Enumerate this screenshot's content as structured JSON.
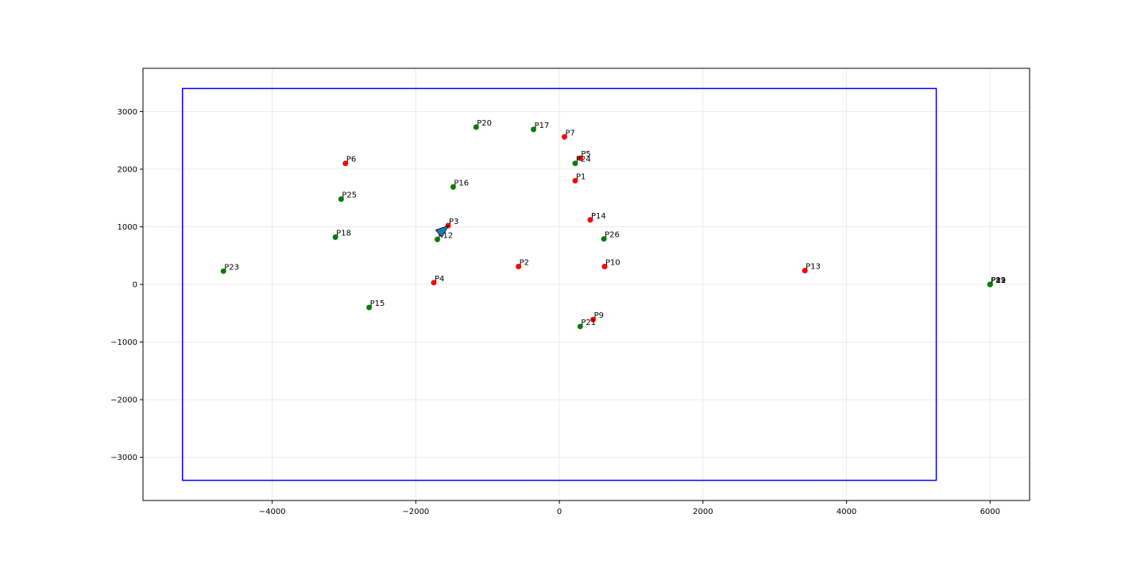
{
  "chart_data": {
    "type": "scatter",
    "title": "",
    "xlabel": "",
    "ylabel": "",
    "xlim": [
      -5800,
      6550
    ],
    "ylim": [
      -3750,
      3750
    ],
    "xticks": [
      -4000,
      -2000,
      0,
      2000,
      4000,
      6000
    ],
    "yticks": [
      -3000,
      -2000,
      -1000,
      0,
      1000,
      2000,
      3000
    ],
    "grid": true,
    "colors": {
      "red_points": "#ff0000",
      "green_points": "#008000",
      "boundary": "#0000ff",
      "arrow": "#1f77b4",
      "grid": "#ebebeb"
    },
    "boundary": {
      "x": [
        -5250,
        5250
      ],
      "y": [
        -3400,
        3400
      ]
    },
    "arrow": {
      "x": -1680,
      "y": 880,
      "heading_deg": 40
    },
    "points": [
      {
        "label": "P1",
        "x": 220,
        "y": 1800,
        "color": "red"
      },
      {
        "label": "P2",
        "x": -570,
        "y": 310,
        "color": "red"
      },
      {
        "label": "P3",
        "x": -1550,
        "y": 1020,
        "color": "red"
      },
      {
        "label": "P4",
        "x": -1750,
        "y": 30,
        "color": "red"
      },
      {
        "label": "P5",
        "x": 290,
        "y": 2190,
        "color": "red"
      },
      {
        "label": "P6",
        "x": -2980,
        "y": 2100,
        "color": "red"
      },
      {
        "label": "P7",
        "x": 70,
        "y": 2560,
        "color": "red"
      },
      {
        "label": "P9",
        "x": 470,
        "y": -610,
        "color": "red"
      },
      {
        "label": "P10",
        "x": 630,
        "y": 310,
        "color": "red"
      },
      {
        "label": "P13",
        "x": 3420,
        "y": 240,
        "color": "red"
      },
      {
        "label": "P14",
        "x": 430,
        "y": 1120,
        "color": "red"
      },
      {
        "label": "P8",
        "x": 6000,
        "y": 0,
        "color": "red"
      },
      {
        "label": "P11",
        "x": 6000,
        "y": 0,
        "color": "red"
      },
      {
        "label": "P12",
        "x": -1700,
        "y": 780,
        "color": "green"
      },
      {
        "label": "P15",
        "x": -2650,
        "y": -400,
        "color": "green"
      },
      {
        "label": "P16",
        "x": -1480,
        "y": 1690,
        "color": "green"
      },
      {
        "label": "P17",
        "x": -360,
        "y": 2690,
        "color": "green"
      },
      {
        "label": "P18",
        "x": -3120,
        "y": 820,
        "color": "green"
      },
      {
        "label": "P20",
        "x": -1160,
        "y": 2730,
        "color": "green"
      },
      {
        "label": "P21",
        "x": 290,
        "y": -730,
        "color": "green"
      },
      {
        "label": "P23",
        "x": -4680,
        "y": 230,
        "color": "green"
      },
      {
        "label": "P24",
        "x": 220,
        "y": 2100,
        "color": "green"
      },
      {
        "label": "P25",
        "x": -3040,
        "y": 1480,
        "color": "green"
      },
      {
        "label": "P26",
        "x": 620,
        "y": 790,
        "color": "green"
      },
      {
        "label": "P19",
        "x": 6000,
        "y": 0,
        "color": "green"
      },
      {
        "label": "P22",
        "x": 6000,
        "y": 0,
        "color": "green"
      }
    ]
  }
}
